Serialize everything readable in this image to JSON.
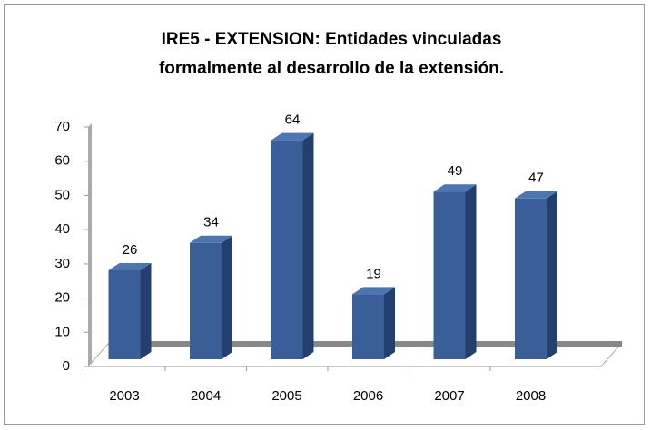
{
  "chart_data": {
    "type": "bar",
    "title": "IRE5 - EXTENSION: Entidades vinculadas formalmente al desarrollo de la extensión.",
    "categories": [
      "2003",
      "2004",
      "2005",
      "2006",
      "2007",
      "2008"
    ],
    "values": [
      26,
      34,
      64,
      19,
      49,
      47
    ],
    "color": "#3a5f98",
    "ylim": [
      0,
      70
    ],
    "yticks": [
      0,
      10,
      20,
      30,
      40,
      50,
      60,
      70
    ]
  }
}
